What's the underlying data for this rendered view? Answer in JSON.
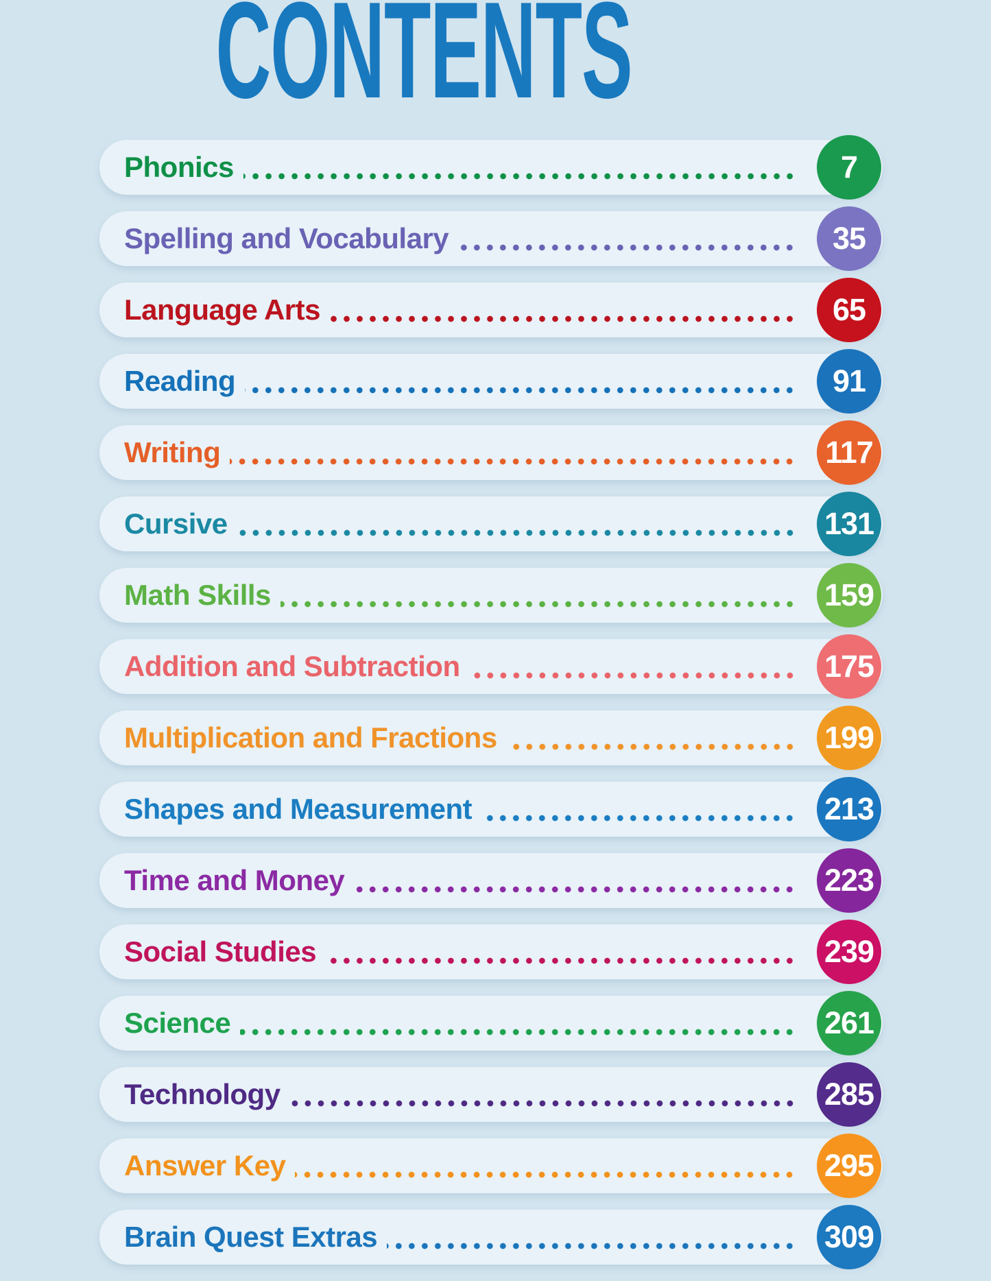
{
  "page": {
    "title": "CONTENTS",
    "title_color": "#1879bf",
    "background_color": "#d2e4ee",
    "row_background_color": "#e8f2f8"
  },
  "toc": {
    "rows": [
      {
        "label": "Phonics",
        "page": "7",
        "color": "#0f9048",
        "circle_color": "#1a9a4f"
      },
      {
        "label": "Spelling and Vocabulary",
        "page": "35",
        "color": "#6a62b4",
        "circle_color": "#7b74c2"
      },
      {
        "label": "Language Arts",
        "page": "65",
        "color": "#bb141f",
        "circle_color": "#c5121d"
      },
      {
        "label": "Reading",
        "page": "91",
        "color": "#1571b8",
        "circle_color": "#1b73bb"
      },
      {
        "label": "Writing",
        "page": "117",
        "color": "#e55f28",
        "circle_color": "#e8622b"
      },
      {
        "label": "Cursive",
        "page": "131",
        "color": "#1b89a3",
        "circle_color": "#19879f"
      },
      {
        "label": "Math Skills",
        "page": "159",
        "color": "#5cb244",
        "circle_color": "#70ba4a"
      },
      {
        "label": "Addition and Subtraction",
        "page": "175",
        "color": "#e9646a",
        "circle_color": "#ee6e72"
      },
      {
        "label": "Multiplication and Fractions",
        "page": "199",
        "color": "#f0932a",
        "circle_color": "#f19a21"
      },
      {
        "label": "Shapes and Measurement",
        "page": "213",
        "color": "#1b7dc2",
        "circle_color": "#1b77c0"
      },
      {
        "label": "Time and Money",
        "page": "223",
        "color": "#8b2aa3",
        "circle_color": "#85269c"
      },
      {
        "label": "Social Studies",
        "page": "239",
        "color": "#c0145c",
        "circle_color": "#cb1065"
      },
      {
        "label": "Science",
        "page": "261",
        "color": "#1ea24e",
        "circle_color": "#27a34c"
      },
      {
        "label": "Technology",
        "page": "285",
        "color": "#4f2a84",
        "circle_color": "#542c8c"
      },
      {
        "label": "Answer Key",
        "page": "295",
        "color": "#f2921d",
        "circle_color": "#f7941e"
      },
      {
        "label": "Brain Quest Extras",
        "page": "309",
        "color": "#1b75bb",
        "circle_color": "#1d79c0"
      }
    ]
  }
}
